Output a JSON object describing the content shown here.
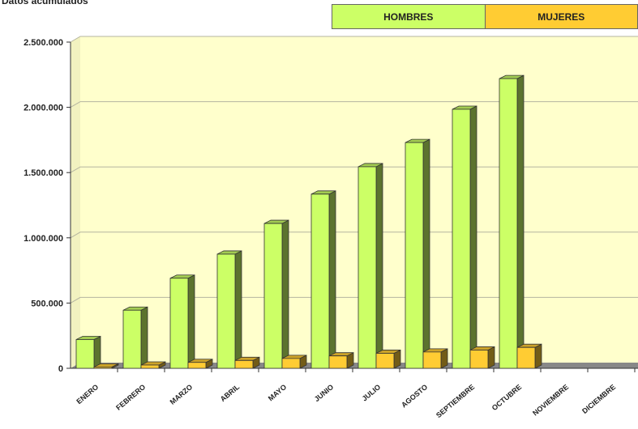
{
  "chart_data": {
    "type": "bar",
    "title": "Datos acumulados",
    "categories": [
      "ENERO",
      "FEBRERO",
      "MARZO",
      "ABRIL",
      "MAYO",
      "JUNIO",
      "JULIO",
      "AGOSTO",
      "SEPTIEMBRE",
      "OCTUBRE",
      "NOVIEMBRE",
      "DICIEMBRE"
    ],
    "series": [
      {
        "name": "HOMBRES",
        "color": "#ccff66",
        "values": [
          220000,
          445000,
          690000,
          875000,
          1110000,
          1335000,
          1545000,
          1730000,
          1985000,
          2220000,
          null,
          null
        ]
      },
      {
        "name": "MUJERES",
        "color": "#ffcc33",
        "values": [
          10000,
          25000,
          45000,
          60000,
          75000,
          95000,
          115000,
          125000,
          140000,
          160000,
          null,
          null
        ]
      }
    ],
    "ylim": [
      0,
      2500000
    ],
    "yticks": [
      0,
      500000,
      1000000,
      1500000,
      2000000,
      2500000
    ],
    "ytick_labels": [
      "0",
      "500.000",
      "1.000.000",
      "1.500.000",
      "2.000.000",
      "2.500.000"
    ],
    "grid": true,
    "legend_position": "top-right",
    "plot_background": "#ffffcc"
  }
}
